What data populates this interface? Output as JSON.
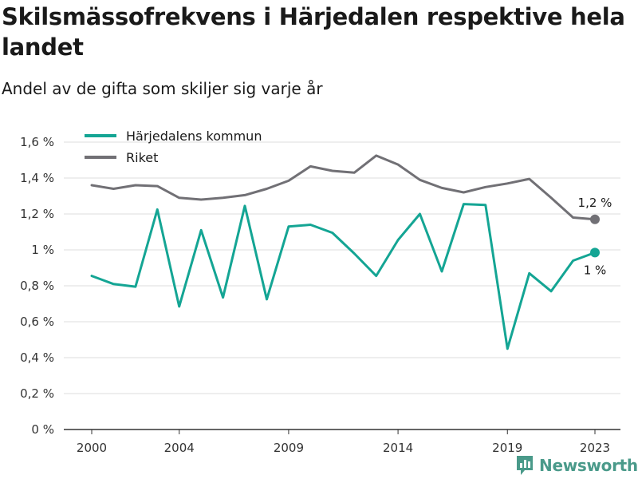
{
  "title": "Skilsmässofrekvens i Härjedalen respektive hela landet",
  "subtitle": "Andel av de gifta som skiljer sig varje år",
  "brand": "Newsworthy",
  "colors": {
    "harjedalen": "#14a594",
    "riket": "#717075",
    "grid": "#dddddd",
    "axis": "#333333"
  },
  "chart_data": {
    "type": "line",
    "title": "Skilsmässofrekvens i Härjedalen respektive hela landet",
    "subtitle": "Andel av de gifta som skiljer sig varje år",
    "xlabel": "",
    "ylabel": "",
    "x": [
      2000,
      2001,
      2002,
      2003,
      2004,
      2005,
      2006,
      2007,
      2008,
      2009,
      2010,
      2011,
      2012,
      2013,
      2014,
      2015,
      2016,
      2017,
      2018,
      2019,
      2020,
      2021,
      2022,
      2023
    ],
    "x_ticks": [
      2000,
      2004,
      2009,
      2014,
      2019,
      2023
    ],
    "x_tick_labels": [
      "2000",
      "2004",
      "2009",
      "2014",
      "2019",
      "2023"
    ],
    "ylim": [
      0,
      1.6
    ],
    "y_ticks": [
      0,
      0.2,
      0.4,
      0.6,
      0.8,
      1.0,
      1.2,
      1.4,
      1.6
    ],
    "y_tick_labels": [
      "0 %",
      "0,2 %",
      "0,4 %",
      "0,6 %",
      "0,8 %",
      "1 %",
      "1,2 %",
      "1,4 %",
      "1,6 %"
    ],
    "grid": true,
    "legend_position": "top-left",
    "series": [
      {
        "name": "Härjedalens kommun",
        "color": "#14a594",
        "values": [
          0.855,
          0.81,
          0.795,
          1.225,
          0.685,
          1.11,
          0.735,
          1.245,
          0.725,
          1.13,
          1.14,
          1.095,
          0.98,
          0.855,
          1.055,
          1.2,
          0.88,
          1.255,
          1.25,
          0.45,
          0.87,
          0.77,
          0.94,
          0.985
        ],
        "end_label": "1 %"
      },
      {
        "name": "Riket",
        "color": "#717075",
        "values": [
          1.36,
          1.34,
          1.36,
          1.355,
          1.29,
          1.28,
          1.29,
          1.305,
          1.34,
          1.385,
          1.465,
          1.44,
          1.43,
          1.525,
          1.475,
          1.39,
          1.345,
          1.32,
          1.35,
          1.37,
          1.395,
          1.29,
          1.18,
          1.17
        ],
        "end_label": "1,2 %"
      }
    ]
  }
}
